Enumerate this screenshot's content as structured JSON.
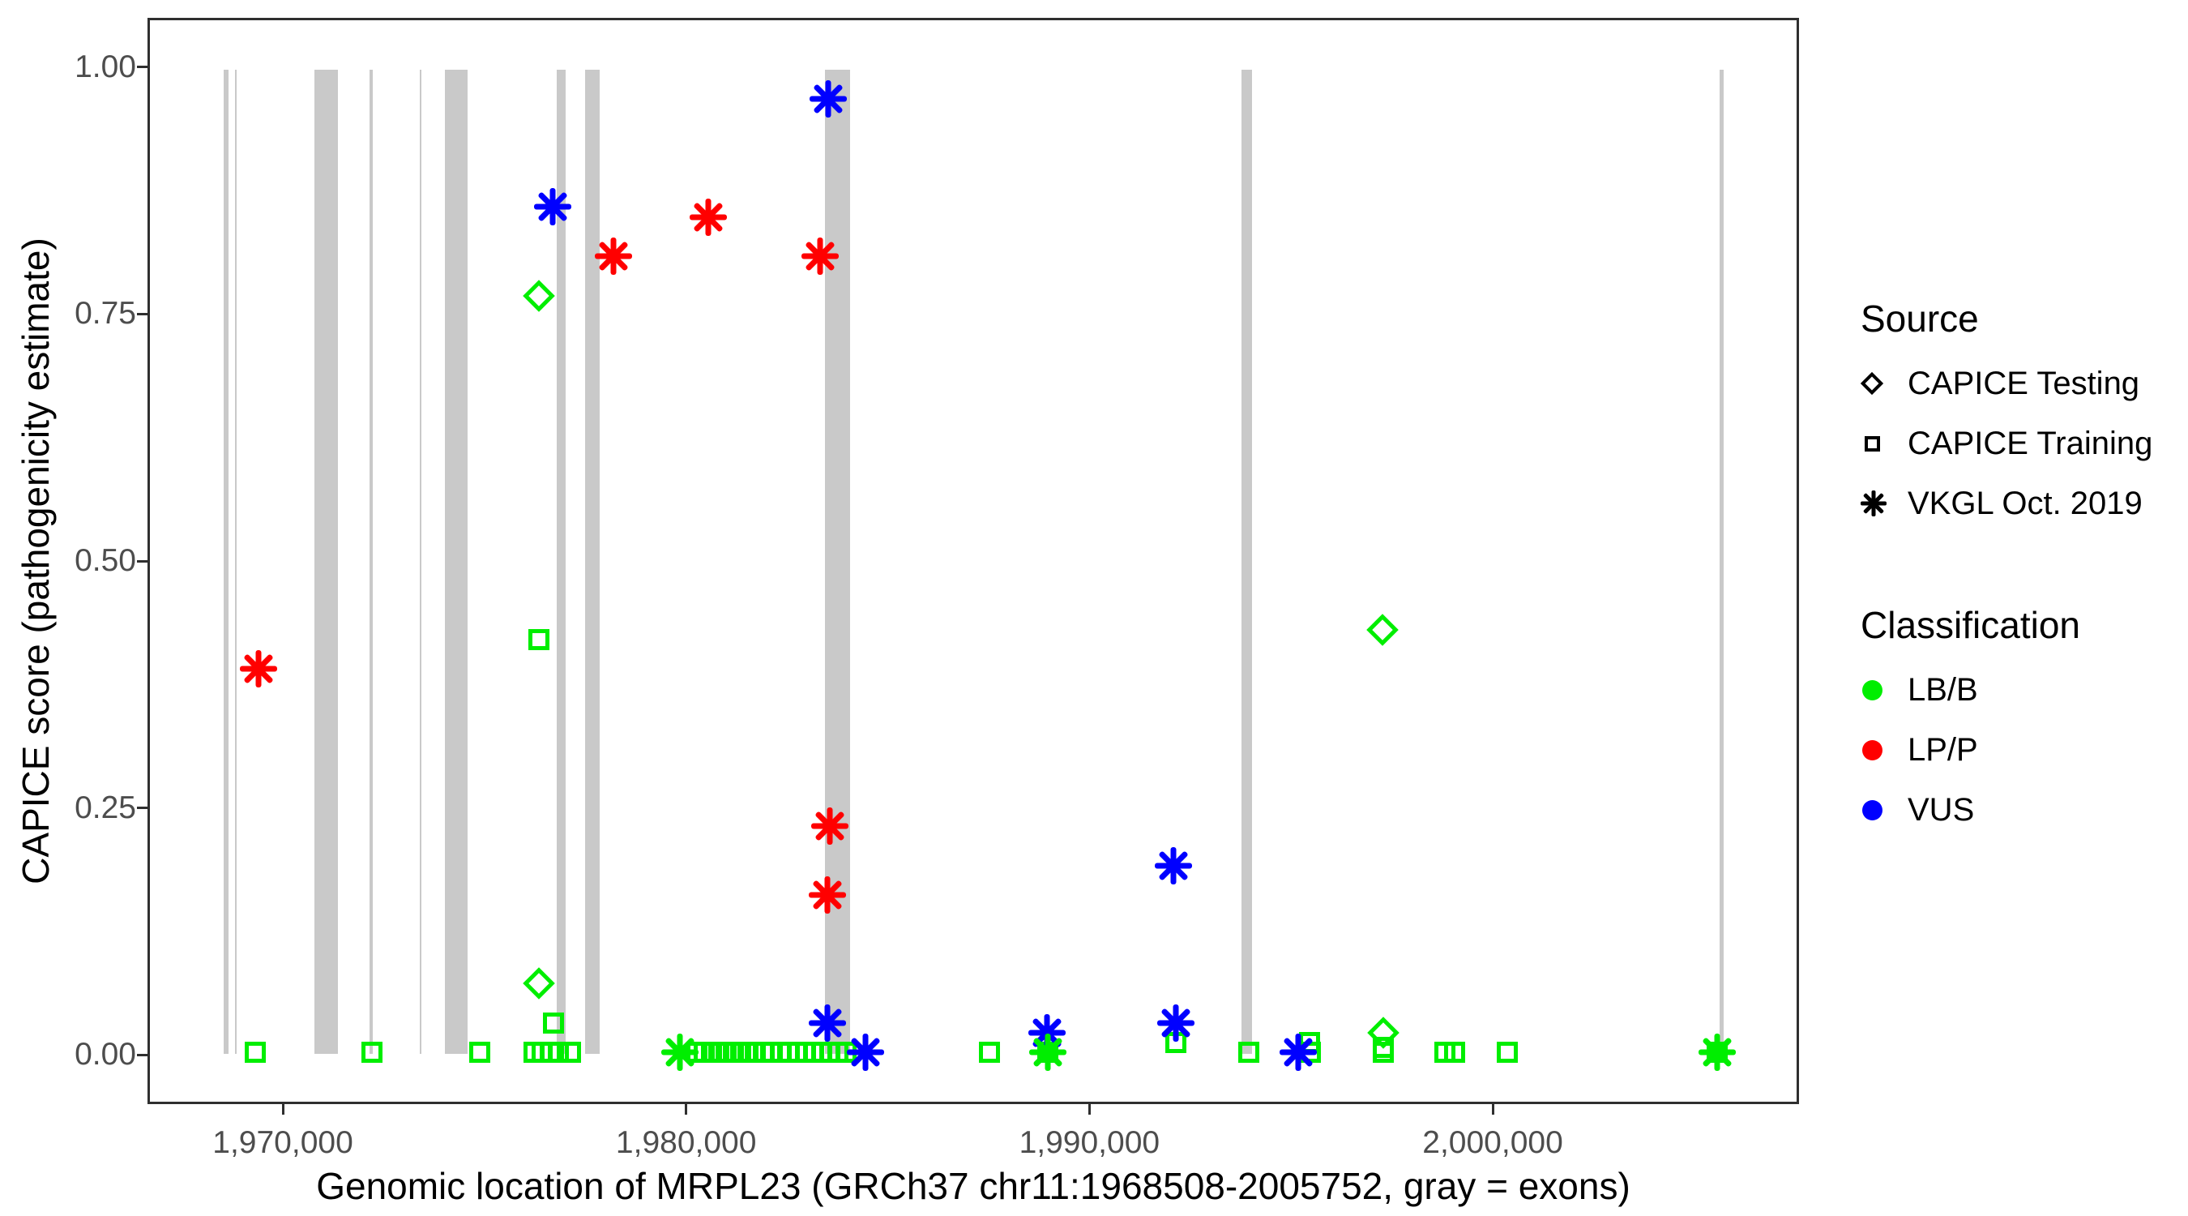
{
  "figure": {
    "x_axis": {
      "title": "Genomic location of MRPL23 (GRCh37 chr11:1968508-2005752, gray = exons)",
      "ticks": [
        {
          "value": 1970000,
          "label": "1,970,000"
        },
        {
          "value": 1980000,
          "label": "1,980,000"
        },
        {
          "value": 1990000,
          "label": "1,990,000"
        },
        {
          "value": 2000000,
          "label": "2,000,000"
        }
      ]
    },
    "y_axis": {
      "title": "CAPICE score (pathogenicity estimate)",
      "ticks": [
        {
          "value": 0.0,
          "label": "0.00"
        },
        {
          "value": 0.25,
          "label": "0.25"
        },
        {
          "value": 0.5,
          "label": "0.50"
        },
        {
          "value": 0.75,
          "label": "0.75"
        },
        {
          "value": 1.0,
          "label": "1.00"
        }
      ]
    }
  },
  "legend": {
    "source": {
      "title": "Source",
      "items": [
        {
          "symbol": "diamond",
          "label": "CAPICE Testing"
        },
        {
          "symbol": "square",
          "label": "CAPICE Training"
        },
        {
          "symbol": "asterisk",
          "label": "VKGL Oct. 2019"
        }
      ]
    },
    "classification": {
      "title": "Classification",
      "items": [
        {
          "color_key": "LB/B",
          "label": "LB/B"
        },
        {
          "color_key": "LP/P",
          "label": "LP/P"
        },
        {
          "color_key": "VUS",
          "label": "VUS"
        }
      ]
    }
  },
  "chart_data": {
    "type": "scatter",
    "x_range": [
      1966644,
      2007595
    ],
    "y_range": [
      -0.05,
      1.05
    ],
    "grid": false,
    "legend_position": "right",
    "exon_color": "#c9c9c9",
    "classification_colors": {
      "LB/B": "#00ee00",
      "LP/P": "#ff0000",
      "VUS": "#0000ff"
    },
    "exons": [
      [
        1968480,
        1968590
      ],
      [
        1968750,
        1968800
      ],
      [
        1970740,
        1971310
      ],
      [
        1972110,
        1972190
      ],
      [
        1973350,
        1973400
      ],
      [
        1973980,
        1974540
      ],
      [
        1976770,
        1976990
      ],
      [
        1977475,
        1977820
      ],
      [
        1983440,
        1984050
      ],
      [
        1993790,
        1994055
      ],
      [
        2005690,
        2005790
      ]
    ],
    "series": [
      {
        "name": "CAPICE Testing",
        "shape": "diamond",
        "points": [
          {
            "x": 1976310,
            "y": 0.77,
            "cls": "LB/B"
          },
          {
            "x": 1976310,
            "y": 0.07,
            "cls": "LB/B"
          },
          {
            "x": 1997290,
            "y": 0.43,
            "cls": "LB/B"
          },
          {
            "x": 1997310,
            "y": 0.02,
            "cls": "LB/B"
          }
        ]
      },
      {
        "name": "CAPICE Training",
        "shape": "square",
        "points": [
          {
            "x": 1969260,
            "y": 0.0,
            "cls": "LB/B"
          },
          {
            "x": 1972170,
            "y": 0.0,
            "cls": "LB/B"
          },
          {
            "x": 1974840,
            "y": 0.0,
            "cls": "LB/B"
          },
          {
            "x": 1976200,
            "y": 0.0,
            "cls": "LB/B"
          },
          {
            "x": 1976400,
            "y": 0.0,
            "cls": "LB/B"
          },
          {
            "x": 1976600,
            "y": 0.0,
            "cls": "LB/B"
          },
          {
            "x": 1976800,
            "y": 0.0,
            "cls": "LB/B"
          },
          {
            "x": 1977100,
            "y": 0.0,
            "cls": "LB/B"
          },
          {
            "x": 1976310,
            "y": 0.42,
            "cls": "LB/B"
          },
          {
            "x": 1976690,
            "y": 0.03,
            "cls": "LB/B"
          },
          {
            "x": 1980250,
            "y": 0.0,
            "cls": "LB/B"
          },
          {
            "x": 1980430,
            "y": 0.0,
            "cls": "LB/B"
          },
          {
            "x": 1980610,
            "y": 0.0,
            "cls": "LB/B"
          },
          {
            "x": 1980790,
            "y": 0.0,
            "cls": "LB/B"
          },
          {
            "x": 1980970,
            "y": 0.0,
            "cls": "LB/B"
          },
          {
            "x": 1981150,
            "y": 0.0,
            "cls": "LB/B"
          },
          {
            "x": 1981330,
            "y": 0.0,
            "cls": "LB/B"
          },
          {
            "x": 1981510,
            "y": 0.0,
            "cls": "LB/B"
          },
          {
            "x": 1981700,
            "y": 0.0,
            "cls": "LB/B"
          },
          {
            "x": 1981900,
            "y": 0.0,
            "cls": "LB/B"
          },
          {
            "x": 1982080,
            "y": 0.0,
            "cls": "LB/B"
          },
          {
            "x": 1982350,
            "y": 0.0,
            "cls": "LB/B"
          },
          {
            "x": 1982550,
            "y": 0.0,
            "cls": "LB/B"
          },
          {
            "x": 1982750,
            "y": 0.0,
            "cls": "LB/B"
          },
          {
            "x": 1982950,
            "y": 0.0,
            "cls": "LB/B"
          },
          {
            "x": 1983150,
            "y": 0.0,
            "cls": "LB/B"
          },
          {
            "x": 1983350,
            "y": 0.0,
            "cls": "LB/B"
          },
          {
            "x": 1983550,
            "y": 0.0,
            "cls": "LB/B"
          },
          {
            "x": 1983750,
            "y": 0.0,
            "cls": "LB/B"
          },
          {
            "x": 1983950,
            "y": 0.0,
            "cls": "LB/B"
          },
          {
            "x": 1987520,
            "y": 0.0,
            "cls": "LB/B"
          },
          {
            "x": 1988970,
            "y": 0.0,
            "cls": "LB/B"
          },
          {
            "x": 1992165,
            "y": 0.01,
            "cls": "LB/B"
          },
          {
            "x": 1993970,
            "y": 0.0,
            "cls": "LB/B"
          },
          {
            "x": 1995480,
            "y": 0.01,
            "cls": "LB/B"
          },
          {
            "x": 1995500,
            "y": 0.0,
            "cls": "LB/B"
          },
          {
            "x": 1997310,
            "y": 0.005,
            "cls": "LB/B"
          },
          {
            "x": 1997310,
            "y": 0.0,
            "cls": "LB/B"
          },
          {
            "x": 1998840,
            "y": 0.0,
            "cls": "LB/B"
          },
          {
            "x": 1999100,
            "y": 0.0,
            "cls": "LB/B"
          },
          {
            "x": 2000410,
            "y": 0.0,
            "cls": "LB/B"
          },
          {
            "x": 2005630,
            "y": 0.0,
            "cls": "LB/B"
          }
        ]
      },
      {
        "name": "VKGL Oct. 2019",
        "shape": "asterisk",
        "points": [
          {
            "x": 1969340,
            "y": 0.39,
            "cls": "LP/P"
          },
          {
            "x": 1978180,
            "y": 0.81,
            "cls": "LP/P"
          },
          {
            "x": 1980530,
            "y": 0.85,
            "cls": "LP/P"
          },
          {
            "x": 1983320,
            "y": 0.81,
            "cls": "LP/P"
          },
          {
            "x": 1983545,
            "y": 0.23,
            "cls": "LP/P"
          },
          {
            "x": 1983485,
            "y": 0.16,
            "cls": "LP/P"
          },
          {
            "x": 1976650,
            "y": 0.86,
            "cls": "VUS"
          },
          {
            "x": 1983505,
            "y": 0.97,
            "cls": "VUS"
          },
          {
            "x": 1983485,
            "y": 0.03,
            "cls": "VUS"
          },
          {
            "x": 1984430,
            "y": 0.0,
            "cls": "VUS"
          },
          {
            "x": 1988950,
            "y": 0.02,
            "cls": "VUS"
          },
          {
            "x": 1992105,
            "y": 0.19,
            "cls": "VUS"
          },
          {
            "x": 1992165,
            "y": 0.03,
            "cls": "VUS"
          },
          {
            "x": 1995200,
            "y": 0.0,
            "cls": "VUS"
          },
          {
            "x": 1979825,
            "y": 0.0,
            "cls": "LB/B"
          },
          {
            "x": 1988970,
            "y": 0.0,
            "cls": "LB/B"
          },
          {
            "x": 2005630,
            "y": 0.0,
            "cls": "LB/B"
          }
        ]
      }
    ]
  }
}
